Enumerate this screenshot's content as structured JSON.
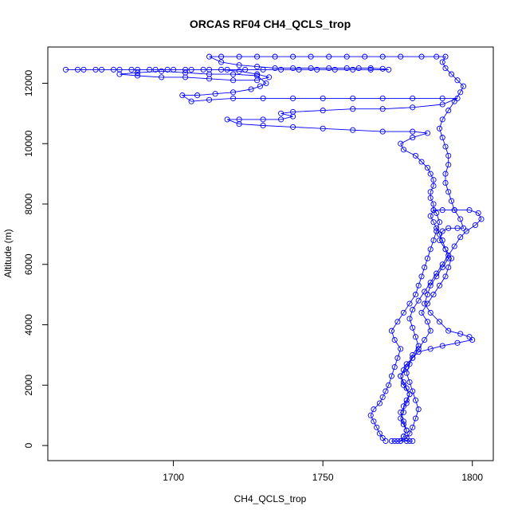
{
  "chart_data": {
    "type": "scatter",
    "title": "ORCAS RF04 CH4_QCLS_trop",
    "xlabel": "CH4_QCLS_trop",
    "ylabel": "Altitude (m)",
    "xlim": [
      1658,
      1807
    ],
    "ylim": [
      -500,
      13200
    ],
    "xticks": [
      1700,
      1750,
      1800
    ],
    "yticks": [
      0,
      2000,
      4000,
      6000,
      8000,
      10000,
      12000
    ],
    "grid": false,
    "legend": "none",
    "series": [
      {
        "name": "",
        "color": "#0000ff",
        "marker": "open-circle",
        "line": true,
        "points": [
          [
            1771,
            150
          ],
          [
            1770,
            250
          ],
          [
            1769,
            400
          ],
          [
            1768,
            600
          ],
          [
            1767,
            800
          ],
          [
            1766,
            1000
          ],
          [
            1767,
            1200
          ],
          [
            1769,
            1400
          ],
          [
            1770,
            1600
          ],
          [
            1771,
            1800
          ],
          [
            1772,
            2000
          ],
          [
            1773,
            2300
          ],
          [
            1774,
            2600
          ],
          [
            1775,
            2900
          ],
          [
            1776,
            3200
          ],
          [
            1774,
            3500
          ],
          [
            1773,
            3800
          ],
          [
            1775,
            4100
          ],
          [
            1777,
            4400
          ],
          [
            1779,
            4700
          ],
          [
            1781,
            5000
          ],
          [
            1782,
            5300
          ],
          [
            1783,
            5600
          ],
          [
            1784,
            5900
          ],
          [
            1785,
            6200
          ],
          [
            1786,
            6500
          ],
          [
            1787,
            6800
          ],
          [
            1788,
            7100
          ],
          [
            1789,
            7400
          ],
          [
            1788,
            7700
          ],
          [
            1787,
            7800
          ],
          [
            1790,
            7800
          ],
          [
            1794,
            7800
          ],
          [
            1799,
            7800
          ],
          [
            1802,
            7700
          ],
          [
            1803,
            7500
          ],
          [
            1801,
            7300
          ],
          [
            1798,
            7100
          ],
          [
            1796,
            6900
          ],
          [
            1794,
            6600
          ],
          [
            1792,
            6300
          ],
          [
            1790,
            6000
          ],
          [
            1788,
            5700
          ],
          [
            1786,
            5400
          ],
          [
            1784,
            5100
          ],
          [
            1782,
            4800
          ],
          [
            1780,
            4500
          ],
          [
            1779,
            4200
          ],
          [
            1780,
            3900
          ],
          [
            1781,
            3600
          ],
          [
            1782,
            3300
          ],
          [
            1780,
            3000
          ],
          [
            1779,
            2700
          ],
          [
            1778,
            2400
          ],
          [
            1779,
            2100
          ],
          [
            1780,
            1800
          ],
          [
            1781,
            1500
          ],
          [
            1782,
            1200
          ],
          [
            1781,
            900
          ],
          [
            1780,
            600
          ],
          [
            1779,
            400
          ],
          [
            1778,
            250
          ],
          [
            1776,
            150
          ],
          [
            1777,
            300
          ],
          [
            1778,
            500
          ],
          [
            1777,
            800
          ],
          [
            1776,
            1100
          ],
          [
            1778,
            1400
          ],
          [
            1779,
            1700
          ],
          [
            1777,
            2000
          ],
          [
            1776,
            2300
          ],
          [
            1778,
            2600
          ],
          [
            1780,
            2900
          ],
          [
            1782,
            3200
          ],
          [
            1784,
            3500
          ],
          [
            1786,
            3800
          ],
          [
            1785,
            4100
          ],
          [
            1783,
            4400
          ],
          [
            1785,
            4700
          ],
          [
            1787,
            5000
          ],
          [
            1789,
            5300
          ],
          [
            1791,
            5600
          ],
          [
            1792,
            5900
          ],
          [
            1793,
            6200
          ],
          [
            1791,
            6500
          ],
          [
            1789,
            6800
          ],
          [
            1790,
            7100
          ],
          [
            1792,
            7200
          ],
          [
            1795,
            7200
          ],
          [
            1797,
            7200
          ],
          [
            1796,
            7500
          ],
          [
            1794,
            7800
          ],
          [
            1793,
            8100
          ],
          [
            1792,
            8400
          ],
          [
            1791,
            8700
          ],
          [
            1791,
            9000
          ],
          [
            1792,
            9300
          ],
          [
            1792,
            9600
          ],
          [
            1791,
            9900
          ],
          [
            1790,
            10200
          ],
          [
            1789,
            10500
          ],
          [
            1790,
            10800
          ],
          [
            1792,
            11100
          ],
          [
            1794,
            11400
          ],
          [
            1796,
            11700
          ],
          [
            1797,
            11900
          ],
          [
            1795,
            12100
          ],
          [
            1793,
            12300
          ],
          [
            1791,
            12500
          ],
          [
            1790,
            12700
          ],
          [
            1791,
            12880
          ],
          [
            1788,
            12880
          ],
          [
            1783,
            12880
          ],
          [
            1776,
            12880
          ],
          [
            1770,
            12880
          ],
          [
            1764,
            12880
          ],
          [
            1758,
            12880
          ],
          [
            1752,
            12880
          ],
          [
            1746,
            12880
          ],
          [
            1740,
            12880
          ],
          [
            1734,
            12880
          ],
          [
            1728,
            12880
          ],
          [
            1722,
            12880
          ],
          [
            1716,
            12880
          ],
          [
            1712,
            12880
          ],
          [
            1716,
            12700
          ],
          [
            1722,
            12600
          ],
          [
            1728,
            12550
          ],
          [
            1734,
            12500
          ],
          [
            1740,
            12500
          ],
          [
            1746,
            12500
          ],
          [
            1752,
            12500
          ],
          [
            1758,
            12500
          ],
          [
            1762,
            12500
          ],
          [
            1766,
            12500
          ],
          [
            1770,
            12480
          ],
          [
            1772,
            12450
          ],
          [
            1766,
            12450
          ],
          [
            1760,
            12450
          ],
          [
            1754,
            12450
          ],
          [
            1748,
            12450
          ],
          [
            1742,
            12450
          ],
          [
            1736,
            12450
          ],
          [
            1730,
            12450
          ],
          [
            1724,
            12450
          ],
          [
            1718,
            12450
          ],
          [
            1712,
            12450
          ],
          [
            1706,
            12450
          ],
          [
            1700,
            12450
          ],
          [
            1694,
            12450
          ],
          [
            1688,
            12450
          ],
          [
            1682,
            12450
          ],
          [
            1676,
            12450
          ],
          [
            1670,
            12450
          ],
          [
            1664,
            12450
          ],
          [
            1668,
            12450
          ],
          [
            1674,
            12450
          ],
          [
            1680,
            12450
          ],
          [
            1686,
            12450
          ],
          [
            1692,
            12450
          ],
          [
            1698,
            12450
          ],
          [
            1704,
            12450
          ],
          [
            1710,
            12450
          ],
          [
            1716,
            12450
          ],
          [
            1722,
            12400
          ],
          [
            1728,
            12300
          ],
          [
            1732,
            12200
          ],
          [
            1728,
            12100
          ],
          [
            1720,
            12100
          ],
          [
            1712,
            12150
          ],
          [
            1704,
            12200
          ],
          [
            1696,
            12200
          ],
          [
            1688,
            12250
          ],
          [
            1682,
            12300
          ],
          [
            1688,
            12350
          ],
          [
            1696,
            12400
          ],
          [
            1704,
            12350
          ],
          [
            1712,
            12300
          ],
          [
            1720,
            12300
          ],
          [
            1728,
            12250
          ],
          [
            1731,
            12000
          ],
          [
            1729,
            11900
          ],
          [
            1726,
            11800
          ],
          [
            1720,
            11700
          ],
          [
            1714,
            11650
          ],
          [
            1708,
            11600
          ],
          [
            1703,
            11600
          ],
          [
            1706,
            11400
          ],
          [
            1712,
            11450
          ],
          [
            1720,
            11500
          ],
          [
            1730,
            11500
          ],
          [
            1740,
            11500
          ],
          [
            1750,
            11500
          ],
          [
            1760,
            11500
          ],
          [
            1770,
            11500
          ],
          [
            1780,
            11500
          ],
          [
            1790,
            11500
          ],
          [
            1795,
            11500
          ],
          [
            1790,
            11300
          ],
          [
            1780,
            11200
          ],
          [
            1770,
            11150
          ],
          [
            1760,
            11150
          ],
          [
            1750,
            11100
          ],
          [
            1740,
            11050
          ],
          [
            1736,
            11000
          ],
          [
            1740,
            10900
          ],
          [
            1736,
            10800
          ],
          [
            1730,
            10800
          ],
          [
            1722,
            10800
          ],
          [
            1718,
            10800
          ],
          [
            1722,
            10650
          ],
          [
            1730,
            10600
          ],
          [
            1740,
            10550
          ],
          [
            1750,
            10500
          ],
          [
            1760,
            10450
          ],
          [
            1770,
            10400
          ],
          [
            1780,
            10400
          ],
          [
            1785,
            10350
          ],
          [
            1780,
            10200
          ],
          [
            1776,
            10000
          ],
          [
            1777,
            9800
          ],
          [
            1781,
            9600
          ],
          [
            1783,
            9400
          ],
          [
            1785,
            9200
          ],
          [
            1786,
            9000
          ],
          [
            1787,
            8800
          ],
          [
            1787,
            8600
          ],
          [
            1786,
            8400
          ],
          [
            1786,
            8200
          ],
          [
            1787,
            8000
          ],
          [
            1787,
            7800
          ],
          [
            1786,
            7600
          ],
          [
            1787,
            7400
          ],
          [
            1788,
            7200
          ],
          [
            1789,
            7000
          ],
          [
            1790,
            6800
          ],
          [
            1791,
            6500
          ],
          [
            1792,
            6200
          ],
          [
            1790,
            5900
          ],
          [
            1788,
            5600
          ],
          [
            1786,
            5300
          ],
          [
            1785,
            5000
          ],
          [
            1784,
            4700
          ],
          [
            1786,
            4400
          ],
          [
            1789,
            4100
          ],
          [
            1792,
            3800
          ],
          [
            1796,
            3700
          ],
          [
            1799,
            3600
          ],
          [
            1800,
            3500
          ],
          [
            1795,
            3400
          ],
          [
            1790,
            3300
          ],
          [
            1786,
            3200
          ],
          [
            1782,
            3100
          ],
          [
            1780,
            2900
          ],
          [
            1778,
            2700
          ],
          [
            1777,
            2500
          ],
          [
            1776,
            2300
          ],
          [
            1777,
            2100
          ],
          [
            1778,
            1900
          ],
          [
            1779,
            1700
          ],
          [
            1778,
            1500
          ],
          [
            1777,
            1300
          ],
          [
            1777,
            1100
          ],
          [
            1776,
            900
          ],
          [
            1777,
            700
          ],
          [
            1778,
            500
          ],
          [
            1777,
            300
          ],
          [
            1776,
            150
          ],
          [
            1775,
            150
          ],
          [
            1774,
            150
          ],
          [
            1773,
            150
          ],
          [
            1778,
            150
          ],
          [
            1779,
            150
          ],
          [
            1780,
            150
          ]
        ]
      }
    ]
  }
}
